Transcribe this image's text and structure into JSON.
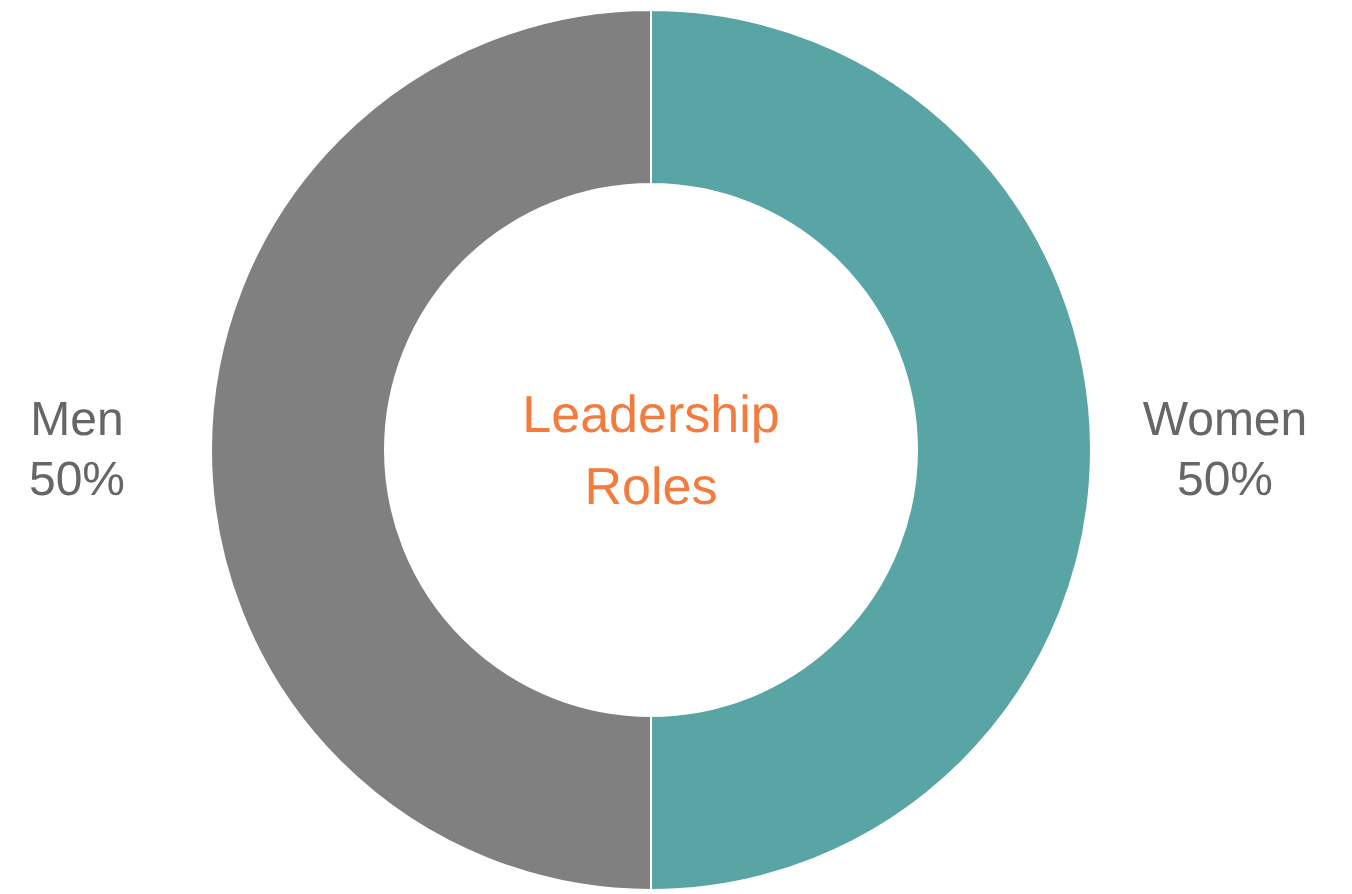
{
  "chart_data": {
    "type": "donut",
    "title": "Leadership\nRoles",
    "categories": [
      "Women",
      "Men"
    ],
    "values": [
      50,
      50
    ],
    "colors": [
      "#59a5a5",
      "#808080"
    ],
    "value_labels": [
      "50%",
      "50%"
    ]
  }
}
